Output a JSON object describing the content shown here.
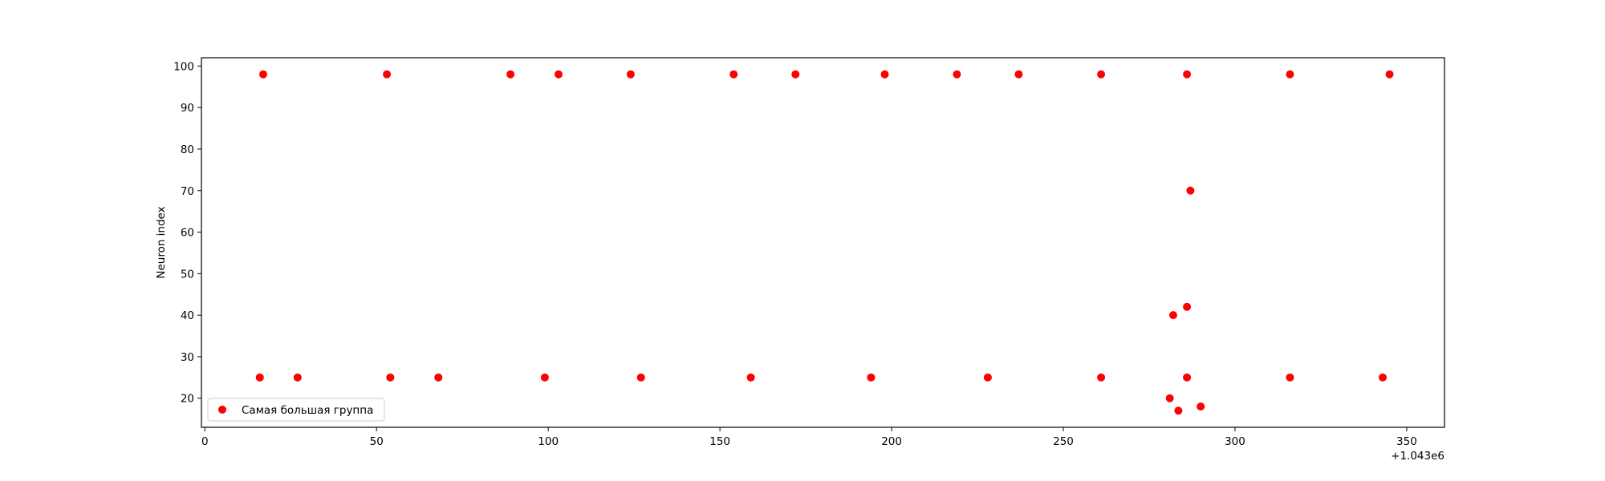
{
  "chart_data": {
    "type": "scatter",
    "title": "",
    "xlabel": "",
    "ylabel": "Neuron index",
    "x_offset_label": "+1.043e6",
    "xlim": [
      -1,
      361
    ],
    "ylim": [
      13,
      102
    ],
    "x_ticks": [
      0,
      50,
      100,
      150,
      200,
      250,
      300,
      350
    ],
    "y_ticks": [
      20,
      30,
      40,
      50,
      60,
      70,
      80,
      90,
      100
    ],
    "grid": false,
    "legend_position": "lower-left",
    "series": [
      {
        "name": "Самая большая группа",
        "color": "#ff0000",
        "marker": "circle",
        "points": [
          [
            17,
            98
          ],
          [
            53,
            98
          ],
          [
            89,
            98
          ],
          [
            103,
            98
          ],
          [
            124,
            98
          ],
          [
            154,
            98
          ],
          [
            172,
            98
          ],
          [
            198,
            98
          ],
          [
            219,
            98
          ],
          [
            237,
            98
          ],
          [
            261,
            98
          ],
          [
            286,
            98
          ],
          [
            316,
            98
          ],
          [
            345,
            98
          ],
          [
            287,
            70
          ],
          [
            286,
            42
          ],
          [
            282,
            40
          ],
          [
            16,
            25
          ],
          [
            27,
            25
          ],
          [
            54,
            25
          ],
          [
            68,
            25
          ],
          [
            99,
            25
          ],
          [
            127,
            25
          ],
          [
            159,
            25
          ],
          [
            194,
            25
          ],
          [
            228,
            25
          ],
          [
            261,
            25
          ],
          [
            286,
            25
          ],
          [
            316,
            25
          ],
          [
            343,
            25
          ],
          [
            281,
            20
          ],
          [
            283.5,
            17
          ],
          [
            290,
            18
          ]
        ]
      }
    ]
  }
}
